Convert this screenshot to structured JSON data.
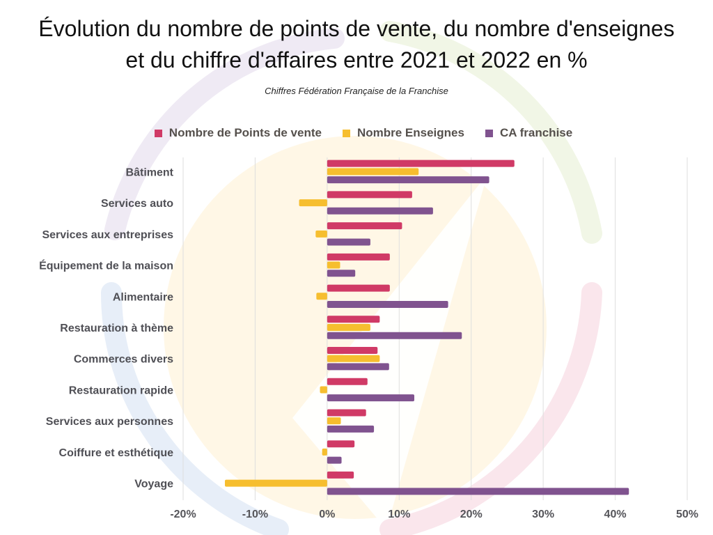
{
  "chart_data": {
    "type": "bar",
    "orientation": "horizontal",
    "title_line1": "Évolution du nombre de points de vente, du nombre d'enseignes",
    "title_line2": "et du chiffre d'affaires entre 2021 et 2022 en %",
    "subtitle": "Chiffres Fédération Française de la Franchise",
    "xlabel": "",
    "ylabel": "",
    "xlim": [
      -20,
      50
    ],
    "grid": true,
    "legend_position": "top",
    "tick_labels": [
      "-20%",
      "-10%",
      "0%",
      "10%",
      "20%",
      "30%",
      "40%",
      "50%"
    ],
    "ticks": [
      -20,
      -10,
      0,
      10,
      20,
      30,
      40,
      50
    ],
    "categories": [
      "Bâtiment",
      "Services auto",
      "Services aux entreprises",
      "Équipement de la maison",
      "Alimentaire",
      "Restauration à thème",
      "Commerces divers",
      "Restauration rapide",
      "Services aux personnes",
      "Coiffure et esthétique",
      "Voyage"
    ],
    "series": [
      {
        "name": "Nombre de Points de vente",
        "color": "#d03a66",
        "values": [
          26.0,
          11.8,
          10.4,
          8.7,
          8.7,
          7.3,
          7.0,
          5.6,
          5.4,
          3.8,
          3.7
        ]
      },
      {
        "name": "Nombre Enseignes",
        "color": "#f6be2f",
        "values": [
          12.7,
          -3.9,
          -1.6,
          1.8,
          -1.5,
          6.0,
          7.3,
          -1.0,
          1.9,
          -0.7,
          -14.2
        ]
      },
      {
        "name": "CA franchise",
        "color": "#80538f",
        "values": [
          22.5,
          14.7,
          6.0,
          3.9,
          16.8,
          18.7,
          8.6,
          12.1,
          6.5,
          2.0,
          41.9
        ]
      }
    ]
  },
  "colors": {
    "grid": "#dedede",
    "watermark_center": "#fff6e2",
    "watermark_purple": "#ece6f2",
    "watermark_green": "#eef5e2",
    "watermark_blue": "#e3ecf7",
    "watermark_red": "#f9e3ea"
  }
}
